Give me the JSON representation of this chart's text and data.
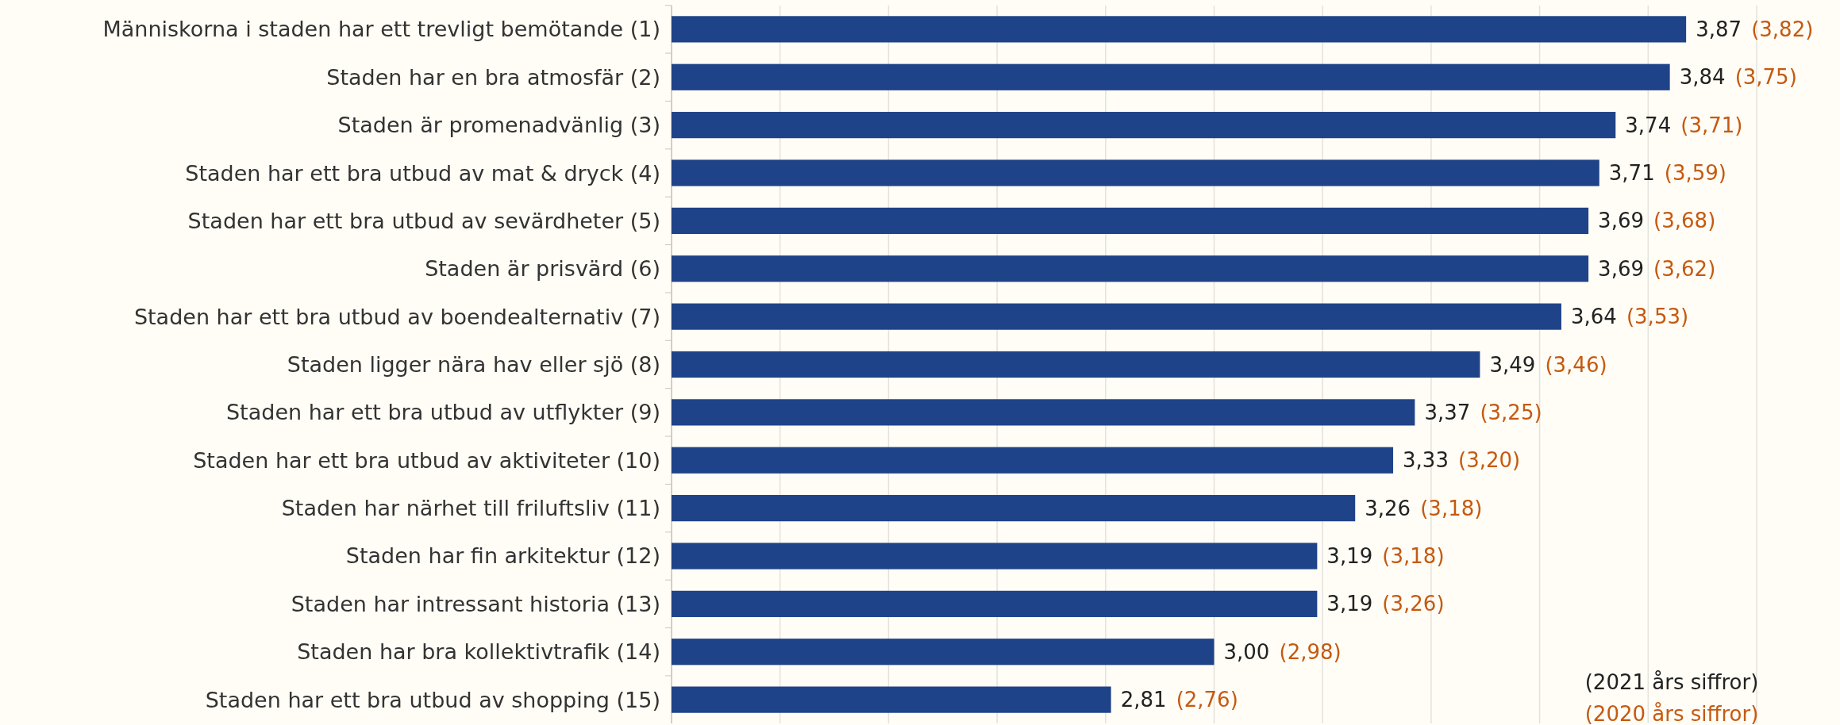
{
  "chart_data": {
    "type": "bar",
    "orientation": "horizontal",
    "categories": [
      "Människorna i staden har ett trevligt bemötande (1)",
      "Staden har en bra atmosfär (2)",
      "Staden är promenadvänlig (3)",
      "Staden har ett bra utbud av mat & dryck (4)",
      "Staden har ett bra utbud av sevärdheter (5)",
      "Staden är prisvärd (6)",
      "Staden har ett bra utbud av boendealternativ (7)",
      "Staden ligger nära hav eller sjö (8)",
      "Staden har ett bra utbud av utflykter (9)",
      "Staden har ett bra utbud av aktiviteter (10)",
      "Staden har närhet till friluftsliv (11)",
      "Staden har fin arkitektur (12)",
      "Staden har intressant historia (13)",
      "Staden har bra kollektivtrafik (14)",
      "Staden har ett bra utbud av shopping (15)"
    ],
    "series": [
      {
        "color": "#1f4388",
        "values": [
          3.87,
          3.84,
          3.74,
          3.71,
          3.69,
          3.69,
          3.64,
          3.49,
          3.37,
          3.33,
          3.26,
          3.19,
          3.19,
          3.0,
          2.81
        ],
        "value_labels": [
          "3,87",
          "3,84",
          "3,74",
          "3,71",
          "3,69",
          "3,69",
          "3,64",
          "3,49",
          "3,37",
          "3,33",
          "3,26",
          "3,19",
          "3,19",
          "3,00",
          "2,81"
        ]
      }
    ],
    "xlim": [
      2,
      4
    ],
    "xticks": [
      {
        "value": 2,
        "label": null
      },
      {
        "value": 2.2,
        "label": null
      },
      {
        "value": 2.4,
        "label": null
      },
      {
        "value": 2.6,
        "label": null
      },
      {
        "value": 2.8,
        "label": null
      },
      {
        "value": 3,
        "label": null
      },
      {
        "value": 3.2,
        "label": null
      },
      {
        "value": 3.4,
        "label": null
      },
      {
        "value": 3.6,
        "label": null
      },
      {
        "value": 3.8,
        "label": null
      },
      {
        "value": 4,
        "label": null
      }
    ],
    "grid": "x",
    "tick_labels": "y",
    "annotations": [
      "(3,82)",
      "(3,75)",
      "(3,71)",
      "(3,59)",
      "(3,68)",
      "(3,62)",
      "(3,53)",
      "(3,46)",
      "(3,25)",
      "(3,20)",
      "(3,18)",
      "(3,18)",
      "(3,26)",
      "(2,98)",
      "(2,76)",
      "(2021 års siffror)",
      "(2020 års siffror)"
    ]
  }
}
